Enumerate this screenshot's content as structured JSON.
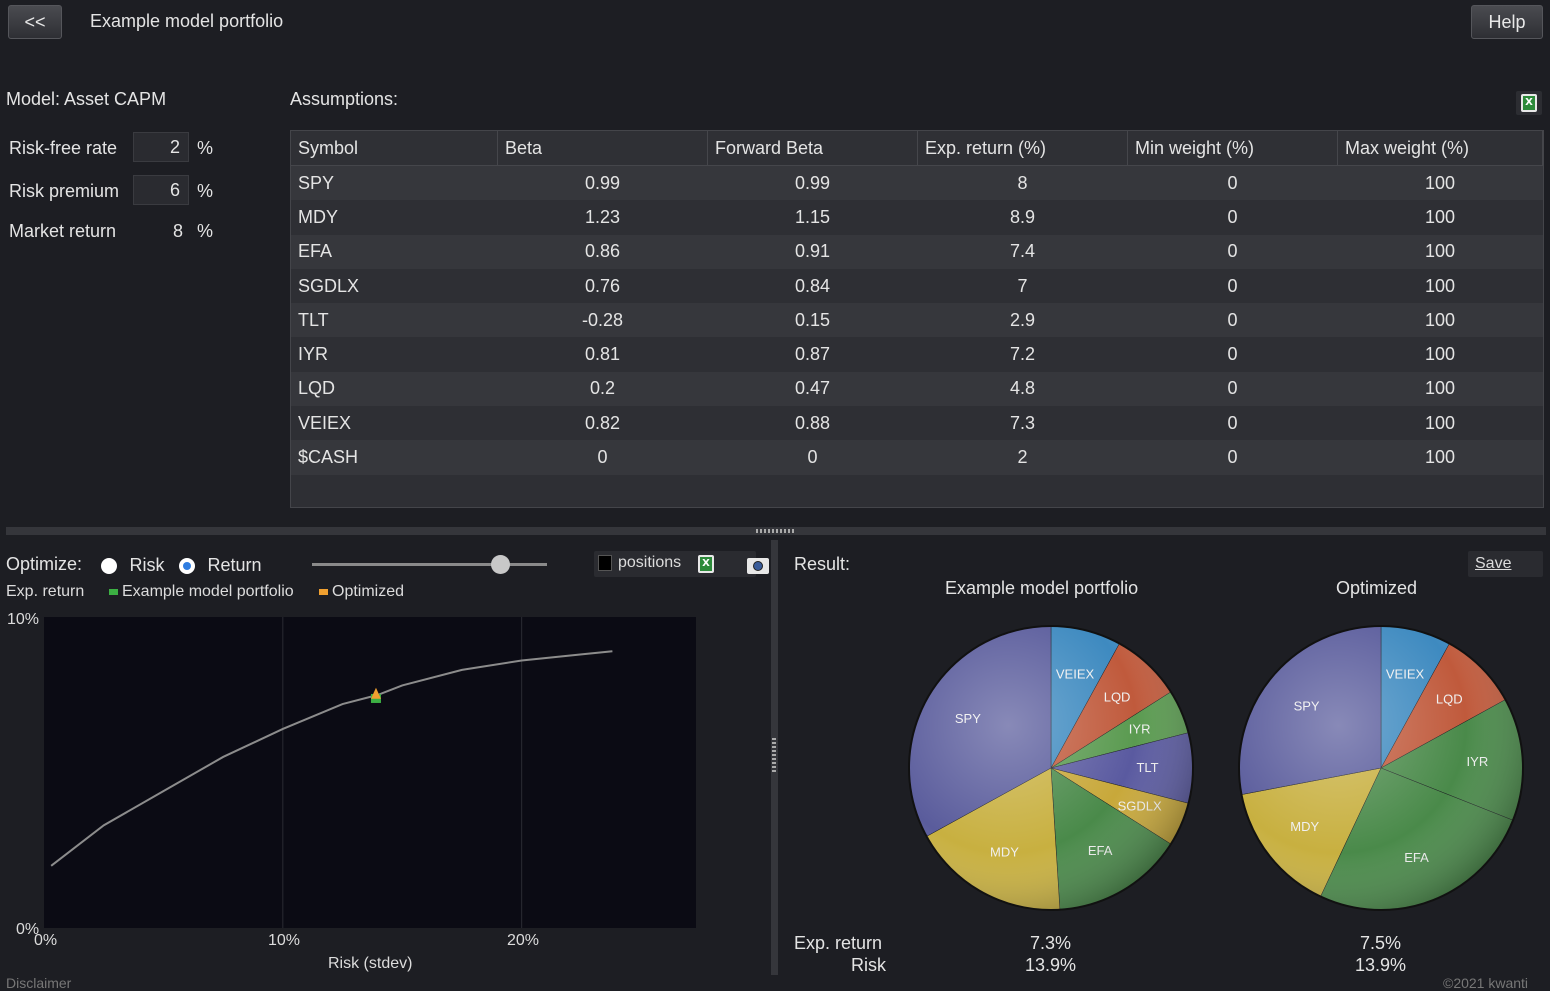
{
  "header": {
    "back_label": "<<",
    "title": "Example model portfolio",
    "help_label": "Help"
  },
  "model": {
    "label": "Model: Asset CAPM",
    "params": [
      {
        "name": "Risk-free rate",
        "value": "2",
        "unit": "%"
      },
      {
        "name": "Risk premium",
        "value": "6",
        "unit": "%"
      },
      {
        "name": "Market return",
        "value": "8",
        "unit": "%"
      }
    ]
  },
  "assumptions": {
    "label": "Assumptions:",
    "columns": [
      "Symbol",
      "Beta",
      "Forward Beta",
      "Exp. return (%)",
      "Min weight (%)",
      "Max weight (%)"
    ],
    "rows": [
      [
        "SPY",
        "0.99",
        "0.99",
        "8",
        "0",
        "100"
      ],
      [
        "MDY",
        "1.23",
        "1.15",
        "8.9",
        "0",
        "100"
      ],
      [
        "EFA",
        "0.86",
        "0.91",
        "7.4",
        "0",
        "100"
      ],
      [
        "SGDLX",
        "0.76",
        "0.84",
        "7",
        "0",
        "100"
      ],
      [
        "TLT",
        "-0.28",
        "0.15",
        "2.9",
        "0",
        "100"
      ],
      [
        "IYR",
        "0.81",
        "0.87",
        "7.2",
        "0",
        "100"
      ],
      [
        "LQD",
        "0.2",
        "0.47",
        "4.8",
        "0",
        "100"
      ],
      [
        "VEIEX",
        "0.82",
        "0.88",
        "7.3",
        "0",
        "100"
      ],
      [
        "$CASH",
        "0",
        "0",
        "2",
        "0",
        "100"
      ]
    ]
  },
  "optimize": {
    "label": "Optimize:",
    "options": [
      "Risk",
      "Return"
    ],
    "selected": "Return",
    "slider_fraction": 0.8,
    "positions_label": "positions"
  },
  "frontier": {
    "ylabel": "Exp. return",
    "legend": [
      {
        "name": "Example model portfolio",
        "color": "#3cb043"
      },
      {
        "name": "Optimized",
        "color": "#f0a030"
      }
    ],
    "xlabel": "Risk (stdev)",
    "y_ticks": [
      "10%",
      "0%"
    ],
    "x_ticks": [
      "0%",
      "10%",
      "20%"
    ],
    "disclaimer": "Disclaimer"
  },
  "chart_data": {
    "type": "line",
    "xlabel": "Risk (stdev)",
    "ylabel": "Exp. return",
    "xlim": [
      0,
      27.3
    ],
    "ylim": [
      0,
      10
    ],
    "x": [
      0.3,
      2.5,
      5,
      7.5,
      10,
      12.5,
      14,
      15,
      17.5,
      20,
      22.5,
      23.8
    ],
    "y": [
      2.0,
      3.3,
      4.4,
      5.5,
      6.4,
      7.2,
      7.5,
      7.8,
      8.3,
      8.6,
      8.8,
      8.9
    ],
    "points": [
      {
        "name": "Example model portfolio",
        "x": 13.9,
        "y": 7.3,
        "color": "#3cb043"
      },
      {
        "name": "Optimized",
        "x": 13.9,
        "y": 7.5,
        "color": "#f0a030"
      }
    ]
  },
  "result": {
    "label": "Result:",
    "save_label": "Save",
    "pies": [
      {
        "title": "Example model portfolio",
        "slices": [
          {
            "label": "VEIEX",
            "value": 8,
            "color": "#3e8ac0"
          },
          {
            "label": "LQD",
            "value": 8,
            "color": "#c05a3c"
          },
          {
            "label": "IYR",
            "value": 5,
            "color": "#5a9a50"
          },
          {
            "label": "TLT",
            "value": 8,
            "color": "#5a5aa0"
          },
          {
            "label": "SGDLX",
            "value": 5,
            "color": "#c8a83a"
          },
          {
            "label": "EFA",
            "value": 15,
            "color": "#4a8a4a"
          },
          {
            "label": "MDY",
            "value": 18,
            "color": "#c8b040"
          },
          {
            "label": "SPY",
            "value": 33,
            "color": "#5a5c9c"
          }
        ],
        "exp_return": "7.3%",
        "risk": "13.9%"
      },
      {
        "title": "Optimized",
        "slices": [
          {
            "label": "VEIEX",
            "value": 8,
            "color": "#3e8ac0"
          },
          {
            "label": "LQD",
            "value": 9,
            "color": "#c05a3c"
          },
          {
            "label": "IYR",
            "value": 14,
            "color": "#4a8a4a"
          },
          {
            "label": "EFA",
            "value": 26,
            "color": "#4a8a4a"
          },
          {
            "label": "MDY",
            "value": 15,
            "color": "#c8b040"
          },
          {
            "label": "SPY",
            "value": 28,
            "color": "#5a5c9c"
          }
        ],
        "exp_return": "7.5%",
        "risk": "13.9%"
      }
    ],
    "exp_return_label": "Exp. return",
    "risk_label": "Risk",
    "copyright": "©2021 kwanti"
  }
}
